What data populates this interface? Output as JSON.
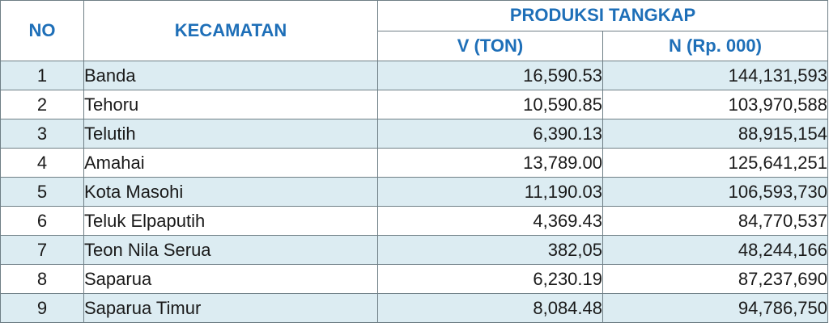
{
  "headers": {
    "no": "NO",
    "kecamatan": "KECAMATAN",
    "produksi": "PRODUKSI TANGKAP",
    "volume": "V (TON)",
    "nilai": "N (Rp.  000)"
  },
  "rows": [
    {
      "no": "1",
      "kecamatan": "Banda",
      "v": "16,590.53",
      "n": "144,131,593"
    },
    {
      "no": "2",
      "kecamatan": "Tehoru",
      "v": "10,590.85",
      "n": "103,970,588"
    },
    {
      "no": "3",
      "kecamatan": "Telutih",
      "v": "6,390.13",
      "n": "88,915,154"
    },
    {
      "no": "4",
      "kecamatan": "Amahai",
      "v": "13,789.00",
      "n": "125,641,251"
    },
    {
      "no": "5",
      "kecamatan": "Kota Masohi",
      "v": "11,190.03",
      "n": "106,593,730"
    },
    {
      "no": "6",
      "kecamatan": "Teluk Elpaputih",
      "v": "4,369.43",
      "n": "84,770,537"
    },
    {
      "no": "7",
      "kecamatan": "Teon Nila Serua",
      "v": "382,05",
      "n": "48,244,166"
    },
    {
      "no": "8",
      "kecamatan": "Saparua",
      "v": "6,230.19",
      "n": "87,237,690"
    },
    {
      "no": "9",
      "kecamatan": "Saparua Timur",
      "v": "8,084.48",
      "n": "94,786,750"
    }
  ],
  "colors": {
    "header_text": "#1e6fb8",
    "stripe": "#dcecf2",
    "border": "#6f7f86"
  }
}
